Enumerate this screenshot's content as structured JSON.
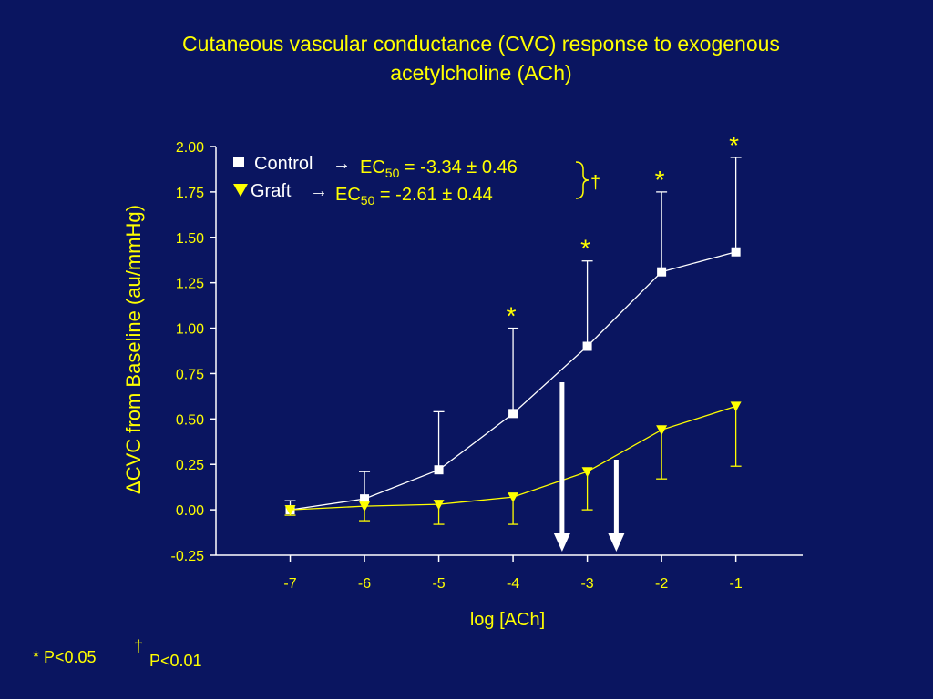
{
  "chart_data": {
    "type": "line",
    "title_lines": [
      "Cutaneous vascular conductance (CVC) response to exogenous",
      "acetylcholine (ACh)"
    ],
    "xlabel": "log [ACh]",
    "ylabel": "ΔCVC from Baseline (au/mmHg)",
    "xlim": [
      -8,
      -0.1
    ],
    "ylim": [
      -0.25,
      2.0
    ],
    "x_ticks": [
      -7,
      -6,
      -5,
      -4,
      -3,
      -2,
      -1
    ],
    "x_tick_labels": [
      "-7",
      "-6",
      "-5",
      "-4",
      "-3",
      "-2",
      "-1"
    ],
    "y_ticks": [
      -0.25,
      0,
      0.25,
      0.5,
      0.75,
      1.0,
      1.25,
      1.5,
      1.75,
      2.0
    ],
    "y_tick_labels": [
      "-0.25",
      "0.00",
      "0.25",
      "0.50",
      "0.75",
      "1.00",
      "1.25",
      "1.50",
      "1.75",
      "2.00"
    ],
    "x": [
      -7,
      -6,
      -5,
      -4,
      -3,
      -2,
      -1
    ],
    "series": [
      {
        "name": "Control",
        "marker": "square",
        "color": "#ffffff",
        "values": [
          0.0,
          0.06,
          0.22,
          0.53,
          0.9,
          1.31,
          1.42
        ],
        "error_upper": [
          0.05,
          0.21,
          0.54,
          1.0,
          1.37,
          1.75,
          1.94
        ],
        "error_direction": "up"
      },
      {
        "name": "Graft",
        "marker": "triangle-down",
        "color": "#ffff00",
        "values": [
          0.0,
          0.02,
          0.03,
          0.07,
          0.21,
          0.44,
          0.57
        ],
        "error_lower": [
          -0.03,
          -0.06,
          -0.08,
          -0.08,
          0.0,
          0.17,
          0.24
        ],
        "error_direction": "down"
      }
    ],
    "significance_stars": [
      {
        "x": -4,
        "y": 1.0,
        "label": "*"
      },
      {
        "x": -3,
        "y": 1.37,
        "label": "*"
      },
      {
        "x": -2,
        "y": 1.75,
        "label": "*"
      },
      {
        "x": -1,
        "y": 1.94,
        "label": "*"
      }
    ],
    "ec50_arrows": [
      {
        "series": "Control",
        "x": -3.34
      },
      {
        "series": "Graft",
        "x": -2.61
      }
    ],
    "legend": {
      "placement": "top-left",
      "control_label": "Control",
      "graft_label": "Graft",
      "arrow": "→",
      "control_ec_prefix": "EC",
      "control_ec_sub": "50",
      "control_ec_value": " = -3.34 ± 0.46",
      "graft_ec_prefix": "EC",
      "graft_ec_sub": "50",
      "graft_ec_value": " = -2.61 ± 0.44",
      "bracket_mark": "†"
    },
    "colors": {
      "background": "#0a1560",
      "text": "#ffff00",
      "control": "#ffffff",
      "graft": "#ffff00"
    }
  },
  "footnotes": {
    "star_note": "* P<0.05",
    "dagger_symbol": "†",
    "dagger_note": "P<0.01"
  }
}
